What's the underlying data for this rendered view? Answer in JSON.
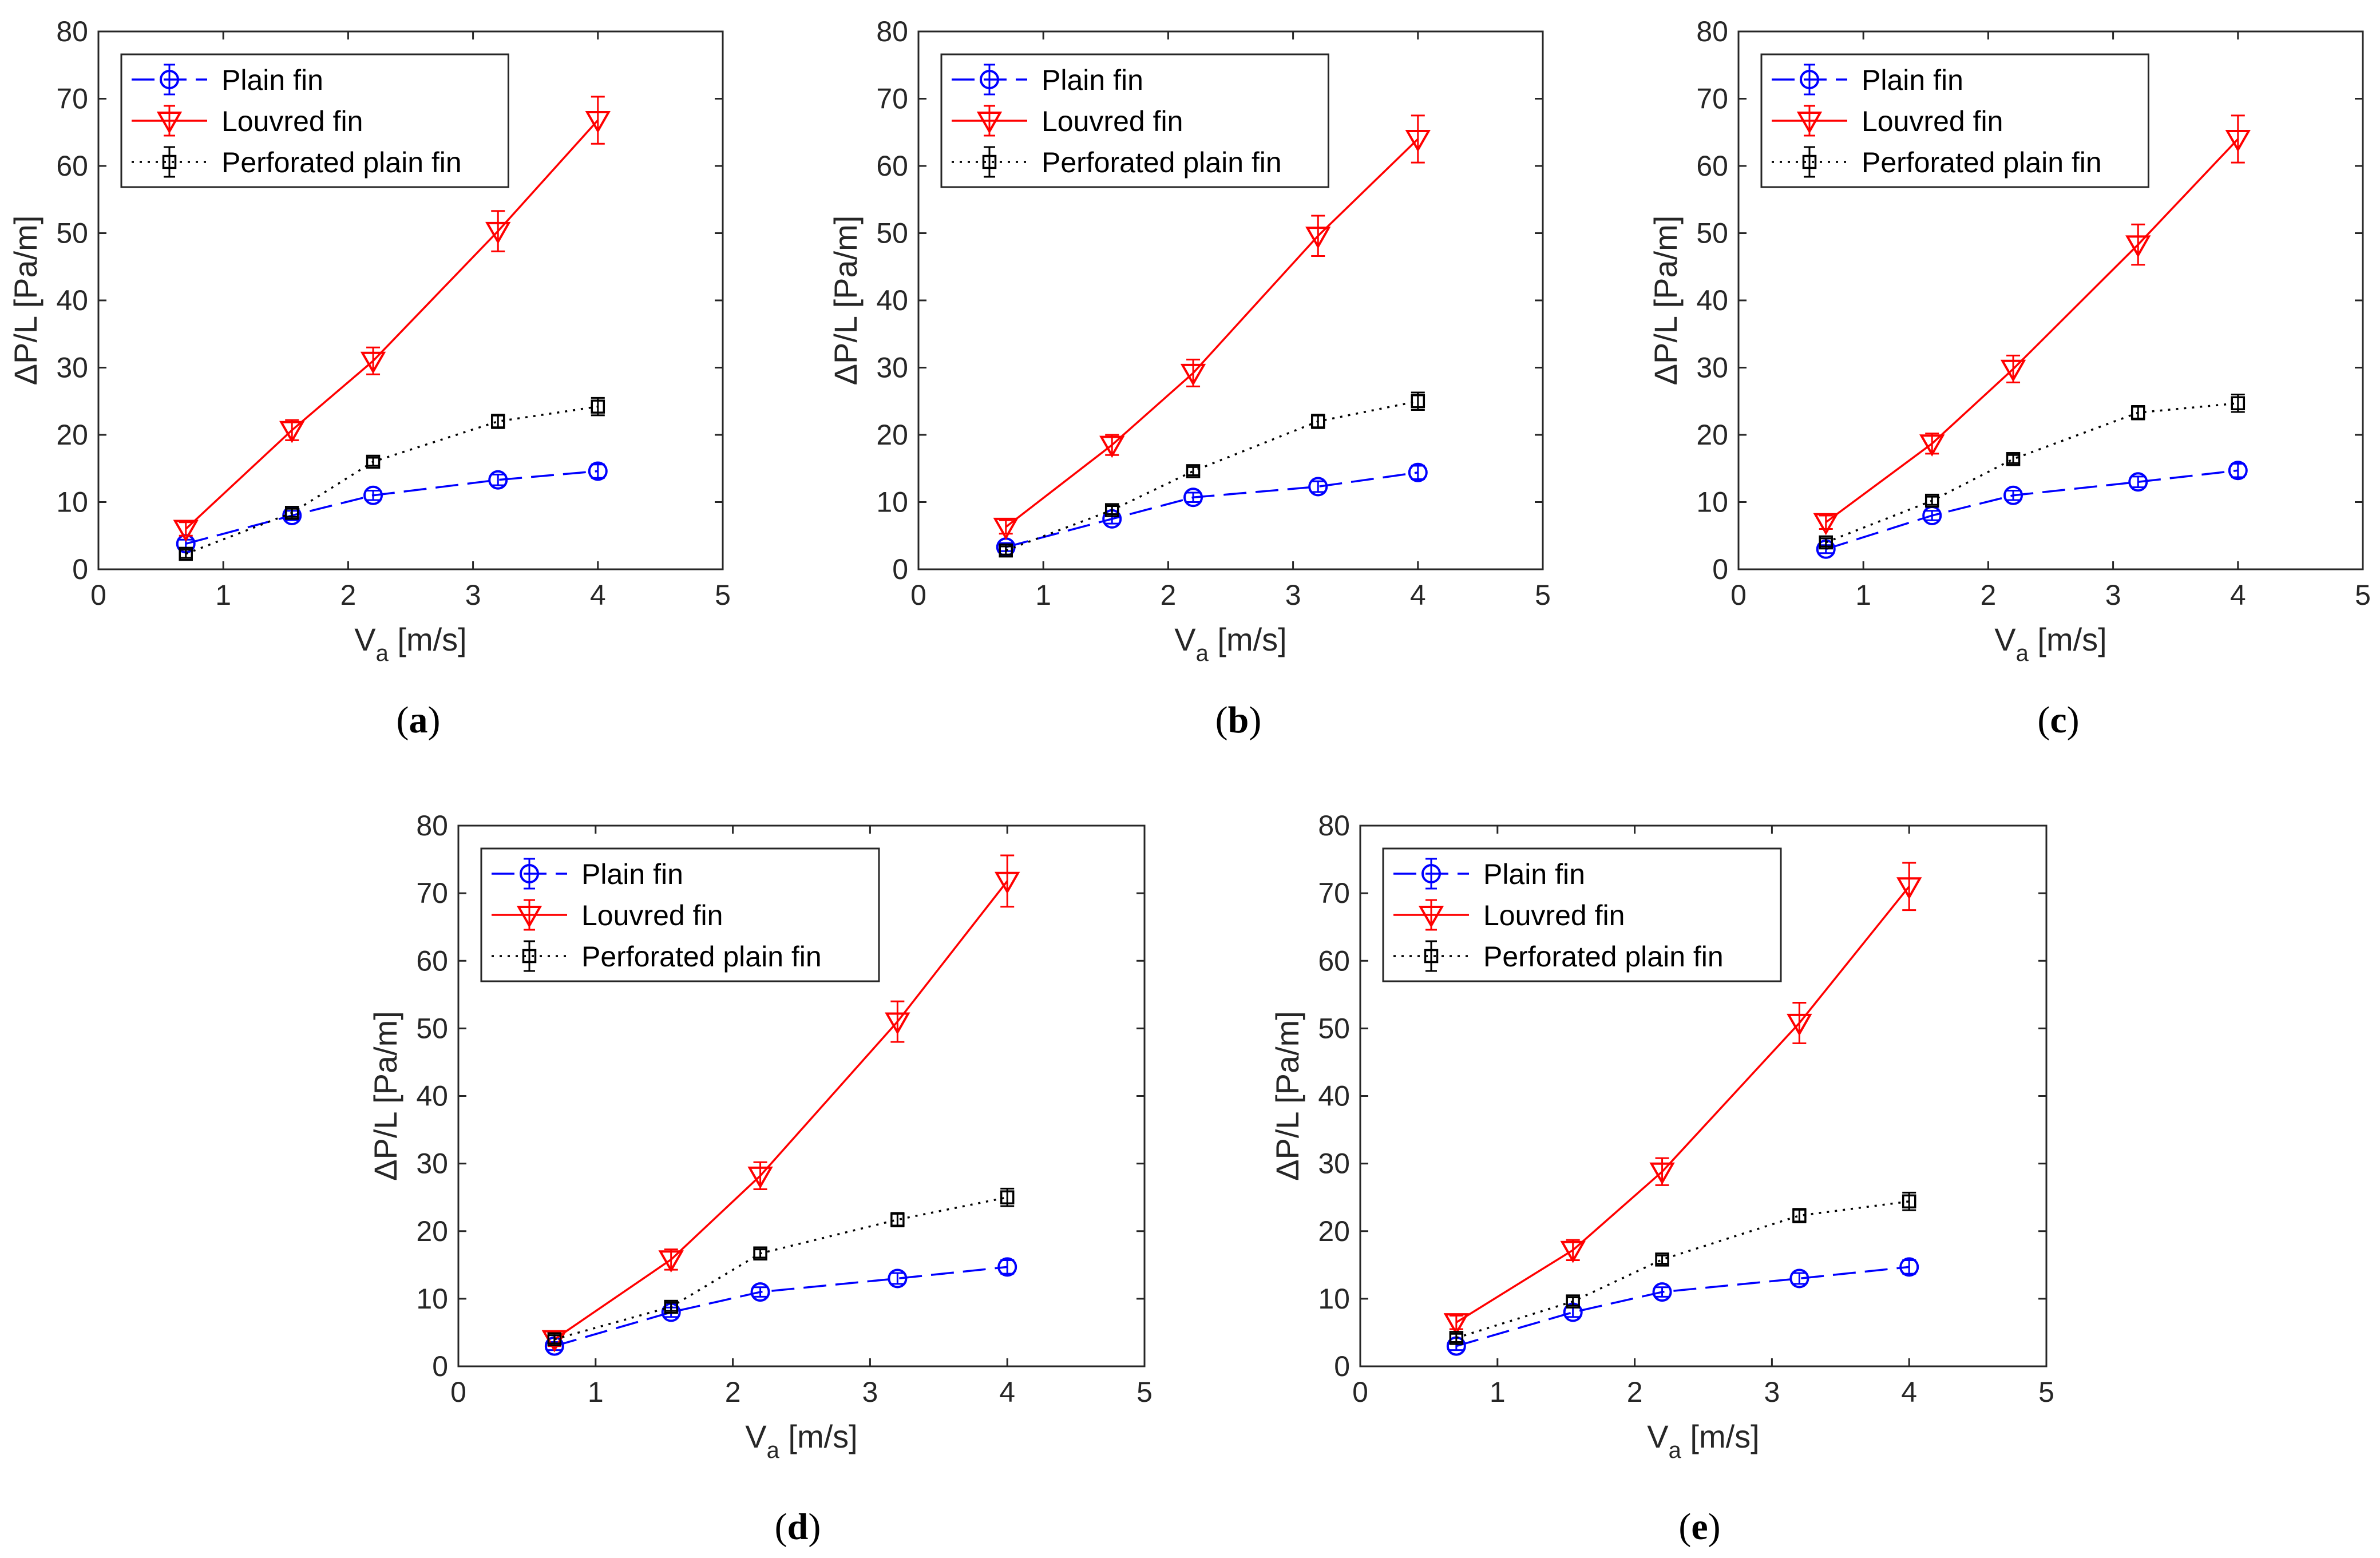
{
  "chart_data": [
    {
      "panel_label": "(a)",
      "panel_letter": "a",
      "type": "line",
      "xlabel": "V",
      "xlabel_sub": "a",
      "xlabel_unit": "[m/s]",
      "ylabel": "ΔP/L [Pa/m]",
      "xlim": [
        0,
        5
      ],
      "ylim": [
        0,
        80
      ],
      "xticks": [
        "0",
        "1",
        "2",
        "3",
        "4",
        "5"
      ],
      "yticks": [
        "0",
        "10",
        "20",
        "30",
        "40",
        "50",
        "60",
        "70",
        "80"
      ],
      "legend_position": "top-left",
      "x": [
        0.7,
        1.55,
        2.2,
        3.2,
        4.0
      ],
      "series": [
        {
          "name": "Plain fin",
          "color": "#0000ff",
          "dash": "long-dash",
          "marker": "circle",
          "values": [
            3.8,
            8.0,
            11.0,
            13.3,
            14.6
          ],
          "errors": [
            0.6,
            0.7,
            0.7,
            0.8,
            1.0
          ]
        },
        {
          "name": "Louvred fin",
          "color": "#ff0000",
          "dash": "solid",
          "marker": "triangle-down",
          "values": [
            6.0,
            20.7,
            31.0,
            50.3,
            66.8
          ],
          "errors": [
            1.0,
            1.5,
            2.0,
            3.0,
            3.5
          ]
        },
        {
          "name": "Perforated plain fin",
          "color": "#000000",
          "dash": "dotted",
          "marker": "square",
          "values": [
            2.3,
            8.4,
            16.0,
            22.0,
            24.2
          ],
          "errors": [
            0.6,
            0.6,
            0.6,
            1.0,
            1.3
          ]
        }
      ]
    },
    {
      "panel_label": "(b)",
      "panel_letter": "b",
      "type": "line",
      "xlabel": "V",
      "xlabel_sub": "a",
      "xlabel_unit": "[m/s]",
      "ylabel": "ΔP/L [Pa/m]",
      "xlim": [
        0,
        5
      ],
      "ylim": [
        0,
        80
      ],
      "xticks": [
        "0",
        "1",
        "2",
        "3",
        "4",
        "5"
      ],
      "yticks": [
        "0",
        "10",
        "20",
        "30",
        "40",
        "50",
        "60",
        "70",
        "80"
      ],
      "legend_position": "top-left",
      "x": [
        0.7,
        1.55,
        2.2,
        3.2,
        4.0
      ],
      "series": [
        {
          "name": "Plain fin",
          "color": "#0000ff",
          "dash": "long-dash",
          "marker": "circle",
          "values": [
            3.3,
            7.5,
            10.7,
            12.3,
            14.4
          ],
          "errors": [
            0.6,
            0.7,
            0.7,
            0.8,
            1.0
          ]
        },
        {
          "name": "Louvred fin",
          "color": "#ff0000",
          "dash": "solid",
          "marker": "triangle-down",
          "values": [
            6.3,
            18.5,
            29.2,
            49.6,
            64.0
          ],
          "errors": [
            1.0,
            1.5,
            2.0,
            3.0,
            3.5
          ]
        },
        {
          "name": "Perforated plain fin",
          "color": "#000000",
          "dash": "dotted",
          "marker": "square",
          "values": [
            2.8,
            8.8,
            14.6,
            22.0,
            25.0
          ],
          "errors": [
            0.6,
            0.6,
            0.6,
            1.0,
            1.3
          ]
        }
      ]
    },
    {
      "panel_label": "(c)",
      "panel_letter": "c",
      "type": "line",
      "xlabel": "V",
      "xlabel_sub": "a",
      "xlabel_unit": "[m/s]",
      "ylabel": "ΔP/L [Pa/m]",
      "xlim": [
        0,
        5
      ],
      "ylim": [
        0,
        80
      ],
      "xticks": [
        "0",
        "1",
        "2",
        "3",
        "4",
        "5"
      ],
      "yticks": [
        "0",
        "10",
        "20",
        "30",
        "40",
        "50",
        "60",
        "70",
        "80"
      ],
      "legend_position": "top-left",
      "x": [
        0.7,
        1.55,
        2.2,
        3.2,
        4.0
      ],
      "series": [
        {
          "name": "Plain fin",
          "color": "#0000ff",
          "dash": "long-dash",
          "marker": "circle",
          "values": [
            3.0,
            8.0,
            11.0,
            13.0,
            14.7
          ],
          "errors": [
            0.6,
            0.7,
            0.7,
            0.8,
            1.0
          ]
        },
        {
          "name": "Louvred fin",
          "color": "#ff0000",
          "dash": "solid",
          "marker": "triangle-down",
          "values": [
            7.0,
            18.7,
            29.8,
            48.3,
            64.0
          ],
          "errors": [
            1.0,
            1.5,
            2.0,
            3.0,
            3.5
          ]
        },
        {
          "name": "Perforated plain fin",
          "color": "#000000",
          "dash": "dotted",
          "marker": "square",
          "values": [
            4.0,
            10.2,
            16.4,
            23.3,
            24.7
          ],
          "errors": [
            0.6,
            0.6,
            0.6,
            1.0,
            1.3
          ]
        }
      ]
    },
    {
      "panel_label": "(d)",
      "panel_letter": "d",
      "type": "line",
      "xlabel": "V",
      "xlabel_sub": "a",
      "xlabel_unit": "[m/s]",
      "ylabel": "ΔP/L [Pa/m]",
      "xlim": [
        0,
        5
      ],
      "ylim": [
        0,
        80
      ],
      "xticks": [
        "0",
        "1",
        "2",
        "3",
        "4",
        "5"
      ],
      "yticks": [
        "0",
        "10",
        "20",
        "30",
        "40",
        "50",
        "60",
        "70",
        "80"
      ],
      "legend_position": "top-left",
      "x": [
        0.7,
        1.55,
        2.2,
        3.2,
        4.0
      ],
      "series": [
        {
          "name": "Plain fin",
          "color": "#0000ff",
          "dash": "long-dash",
          "marker": "circle",
          "values": [
            3.0,
            8.0,
            11.0,
            13.0,
            14.7
          ],
          "errors": [
            0.6,
            0.7,
            0.7,
            0.8,
            1.0
          ]
        },
        {
          "name": "Louvred fin",
          "color": "#ff0000",
          "dash": "solid",
          "marker": "triangle-down",
          "values": [
            4.0,
            15.8,
            28.2,
            51.0,
            71.8
          ],
          "errors": [
            1.0,
            1.5,
            2.0,
            3.0,
            3.8
          ]
        },
        {
          "name": "Perforated plain fin",
          "color": "#000000",
          "dash": "dotted",
          "marker": "square",
          "values": [
            4.0,
            8.8,
            16.7,
            21.7,
            25.0
          ],
          "errors": [
            0.6,
            0.6,
            0.6,
            1.0,
            1.3
          ]
        }
      ]
    },
    {
      "panel_label": "(e)",
      "panel_letter": "e",
      "type": "line",
      "xlabel": "V",
      "xlabel_sub": "a",
      "xlabel_unit": "[m/s]",
      "ylabel": "ΔP/L [Pa/m]",
      "xlim": [
        0,
        5
      ],
      "ylim": [
        0,
        80
      ],
      "xticks": [
        "0",
        "1",
        "2",
        "3",
        "4",
        "5"
      ],
      "yticks": [
        "0",
        "10",
        "20",
        "30",
        "40",
        "50",
        "60",
        "70",
        "80"
      ],
      "legend_position": "top-left",
      "x": [
        0.7,
        1.55,
        2.2,
        3.2,
        4.0
      ],
      "series": [
        {
          "name": "Plain fin",
          "color": "#0000ff",
          "dash": "long-dash",
          "marker": "circle",
          "values": [
            3.0,
            8.0,
            11.0,
            13.0,
            14.7
          ],
          "errors": [
            0.6,
            0.7,
            0.7,
            0.8,
            1.0
          ]
        },
        {
          "name": "Louvred fin",
          "color": "#ff0000",
          "dash": "solid",
          "marker": "triangle-down",
          "values": [
            6.5,
            17.2,
            28.8,
            50.8,
            71.0
          ],
          "errors": [
            1.0,
            1.5,
            2.0,
            3.0,
            3.5
          ]
        },
        {
          "name": "Perforated plain fin",
          "color": "#000000",
          "dash": "dotted",
          "marker": "square",
          "values": [
            4.2,
            9.6,
            15.8,
            22.3,
            24.4
          ],
          "errors": [
            0.6,
            0.6,
            0.6,
            1.0,
            1.3
          ]
        }
      ]
    }
  ]
}
